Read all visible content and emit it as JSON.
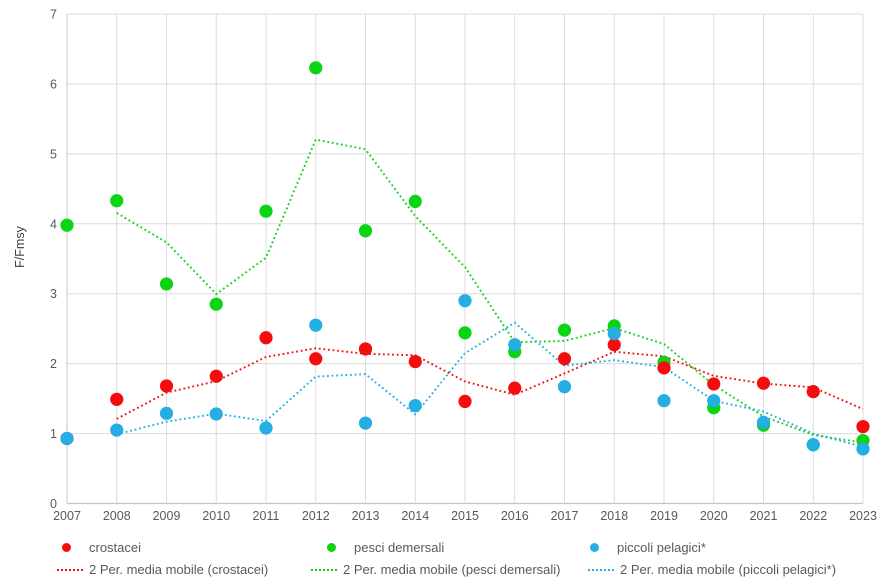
{
  "chart_data": {
    "type": "scatter",
    "title": "",
    "xlabel": "",
    "ylabel": "F/Fmsy",
    "x": [
      2007,
      2008,
      2009,
      2010,
      2011,
      2012,
      2013,
      2014,
      2015,
      2016,
      2017,
      2018,
      2019,
      2020,
      2021,
      2022,
      2023
    ],
    "ylim": [
      0,
      7
    ],
    "yticks": [
      0,
      1,
      2,
      3,
      4,
      5,
      6,
      7
    ],
    "grid": true,
    "legend_position": "bottom",
    "axis_text_color": "#595959",
    "grid_color": "#dcdcdc",
    "series": [
      {
        "name": "crostacei",
        "color": "#f50d0d",
        "marker": "circle",
        "values": [
          0.93,
          1.49,
          1.68,
          1.82,
          2.37,
          2.07,
          2.21,
          2.03,
          1.46,
          1.65,
          2.07,
          2.27,
          1.94,
          1.71,
          1.72,
          1.6,
          1.1
        ]
      },
      {
        "name": "pesci demersali",
        "color": "#0bd412",
        "marker": "circle",
        "values": [
          3.98,
          4.33,
          3.14,
          2.85,
          4.18,
          6.23,
          3.9,
          4.32,
          2.44,
          2.17,
          2.48,
          2.54,
          2.02,
          1.37,
          1.12,
          0.84,
          0.9
        ]
      },
      {
        "name": "piccoli pelagici*",
        "color": "#24aee4",
        "marker": "circle",
        "values": [
          0.93,
          1.05,
          1.29,
          1.28,
          1.08,
          2.55,
          1.15,
          1.4,
          2.9,
          2.27,
          1.67,
          2.43,
          1.47,
          1.47,
          1.16,
          0.84,
          0.78
        ]
      }
    ],
    "trendlines": [
      {
        "name": "2 Per. media mobile (crostacei)",
        "series_index": 0,
        "period": 2,
        "style": "dotted"
      },
      {
        "name": "2 Per. media mobile (pesci demersali)",
        "series_index": 1,
        "period": 2,
        "style": "dotted"
      },
      {
        "name": "2 Per. media mobile (piccoli pelagici*)",
        "series_index": 2,
        "period": 2,
        "style": "dotted"
      }
    ]
  }
}
